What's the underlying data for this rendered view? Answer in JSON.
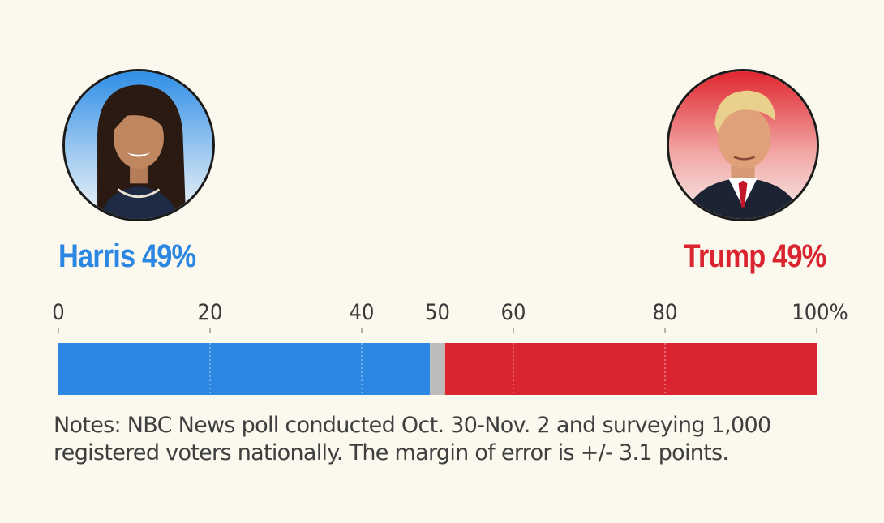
{
  "candidates": {
    "left": {
      "name": "Harris",
      "percent_label": "Harris 49%",
      "value": 49,
      "color": "#2b87e1",
      "portrait_icon": "harris-portrait"
    },
    "right": {
      "name": "Trump",
      "percent_label": "Trump 49%",
      "value": 49,
      "color": "#da2530",
      "portrait_icon": "trump-portrait"
    }
  },
  "chart_data": {
    "type": "bar",
    "orientation": "horizontal-stacked",
    "series": [
      {
        "name": "Harris",
        "value": 49,
        "color": "#2b87e1"
      },
      {
        "name": "",
        "value": 2,
        "color": "#bcbcbc"
      },
      {
        "name": "Trump",
        "value": 49,
        "color": "#da2530"
      }
    ],
    "xlim": [
      0,
      100
    ],
    "ticks": [
      "0",
      "20",
      "40",
      "50",
      "60",
      "80",
      "100%"
    ],
    "tick_values": [
      0,
      20,
      40,
      50,
      60,
      80,
      100
    ],
    "midpoint_tick": "50",
    "midpoint_color": "#bdbdbd"
  },
  "notes": "Notes: NBC News poll conducted Oct. 30-Nov. 2 and surveying 1,000 registered voters nationally. The margin of error is +/- 3.1 points."
}
